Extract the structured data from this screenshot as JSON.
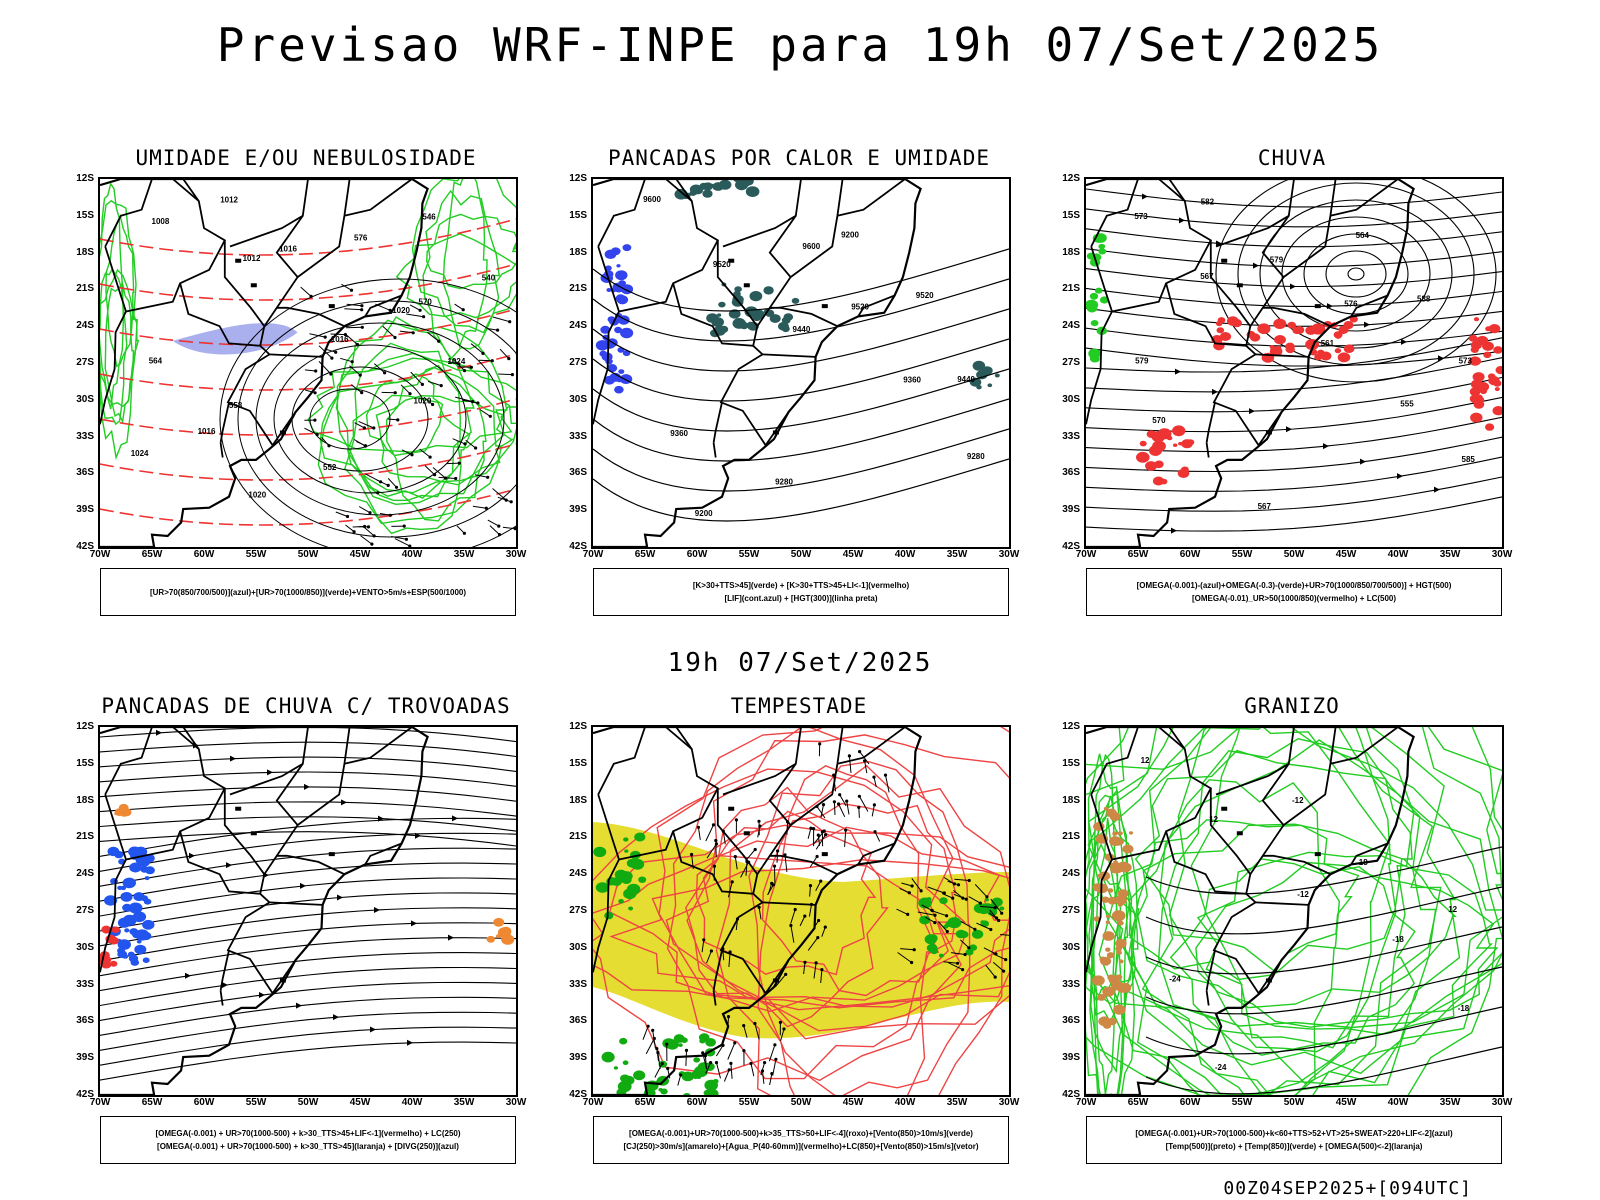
{
  "header": {
    "title": "Previsao WRF-INPE  para 19h 07/Set/2025",
    "middle_time": "19h 07/Set/2025",
    "run_info": "00Z04SEP2025+[094UTC]"
  },
  "axes": {
    "lat_ticks": [
      "12S",
      "15S",
      "18S",
      "21S",
      "24S",
      "27S",
      "30S",
      "33S",
      "36S",
      "39S",
      "42S"
    ],
    "lon_ticks": [
      "70W",
      "65W",
      "60W",
      "55W",
      "50W",
      "45W",
      "40W",
      "35W",
      "30W"
    ]
  },
  "chart_data": [
    {
      "type": "map",
      "panel": "umidade",
      "title": "UMIDADE E/OU NEBULOSIDADE",
      "legend": [
        "[UR>70(850/700/500)](azul)+[UR>70(1000/850)](verde)+VENTO>5m/s+ESP(500/1000)"
      ],
      "contour_labels": [
        "1008",
        "1012",
        "1016",
        "1020",
        "1024",
        "1012",
        "1016",
        "1020",
        "1024",
        "1016",
        "1020",
        "576",
        "570",
        "564",
        "558",
        "552",
        "546",
        "540"
      ],
      "lat_range": [
        "12S",
        "42S"
      ],
      "lon_range": [
        "70W",
        "30W"
      ]
    },
    {
      "type": "map",
      "panel": "pancadas_calor",
      "title": "PANCADAS POR CALOR E UMIDADE",
      "legend": [
        "[K>30+TTS>45](verde) + [K>30+TTS>45+LI<-1](vermelho)",
        "[LIF](cont.azul) + [HGT(300)](linha preta)"
      ],
      "contour_labels": [
        "9600",
        "9520",
        "9440",
        "9360",
        "9280",
        "9200",
        "9600",
        "9520",
        "9440",
        "9360",
        "9280",
        "9200",
        "9520"
      ],
      "lat_range": [
        "12S",
        "42S"
      ],
      "lon_range": [
        "70W",
        "30W"
      ]
    },
    {
      "type": "map",
      "panel": "chuva",
      "title": "CHUVA",
      "legend": [
        "[OMEGA(-0.001)-(azul)+OMEGA(-0.3)-(verde)+UR>70(1000/850/700/500)] + HGT(500)",
        "[OMEGA(-0.01)_UR>50(1000/850)(vermelho) + LC(500)"
      ],
      "contour_labels": [
        "573",
        "567",
        "561",
        "555",
        "585",
        "582",
        "579",
        "576",
        "573",
        "570",
        "567",
        "564",
        "588",
        "579"
      ],
      "lat_range": [
        "12S",
        "42S"
      ],
      "lon_range": [
        "70W",
        "30W"
      ]
    },
    {
      "type": "map",
      "panel": "trovoadas",
      "title": "PANCADAS DE CHUVA C/ TROVOADAS",
      "legend": [
        "[OMEGA(-0.001) + UR>70(1000-500) + k>30_TTS>45+LIF<-1](vermelho) + LC(250)",
        "[OMEGA(-0.001) + UR>70(1000-500) + k>30_TTS>45](laranja) + [DIVG(250)](azul)"
      ],
      "contour_labels": [],
      "lat_range": [
        "12S",
        "42S"
      ],
      "lon_range": [
        "70W",
        "30W"
      ]
    },
    {
      "type": "map",
      "panel": "tempestade",
      "title": "TEMPESTADE",
      "legend": [
        "[OMEGA(-0.001)+UR>70(1000-500)+k>35_TTS>50+LIF<-4](roxo)+[Vento(850)>10m/s](verde)",
        "[CJ(250)>30m/s](amarelo)+[Agua_P(40-60mm)](vermelho)+LC(850)+[Vento(850)>15m/s](vetor)"
      ],
      "contour_labels": [],
      "lat_range": [
        "12S",
        "42S"
      ],
      "lon_range": [
        "70W",
        "30W"
      ]
    },
    {
      "type": "map",
      "panel": "granizo",
      "title": "GRANIZO",
      "legend": [
        "[OMEGA(-0.001)+UR>70(1000-500)+k<60+TTS>52+VT>25+SWEAT>220+LIF<-2](azul)",
        "[Temp(500)](preto) + [Temp(850)](verde) + [OMEGA(500)<-2](laranja)"
      ],
      "contour_labels": [
        "12",
        "12",
        "-12",
        "-18",
        "-18",
        "-24",
        "-12",
        "18",
        "12",
        "-24"
      ],
      "lat_range": [
        "12S",
        "42S"
      ],
      "lon_range": [
        "70W",
        "30W"
      ]
    }
  ],
  "colors": {
    "humid_mid": "#aab0ee",
    "humid_low": "#22cc22",
    "thickness": "#ee3333",
    "lif": "#3344ee",
    "convection": "#2a5a5a",
    "rain": "#ee3333",
    "jet": "#e6dd33",
    "water": "#ee4444",
    "wind": "#11aa11",
    "hail": "#cc8844",
    "divg": "#2255ee",
    "orange": "#ee8833"
  }
}
